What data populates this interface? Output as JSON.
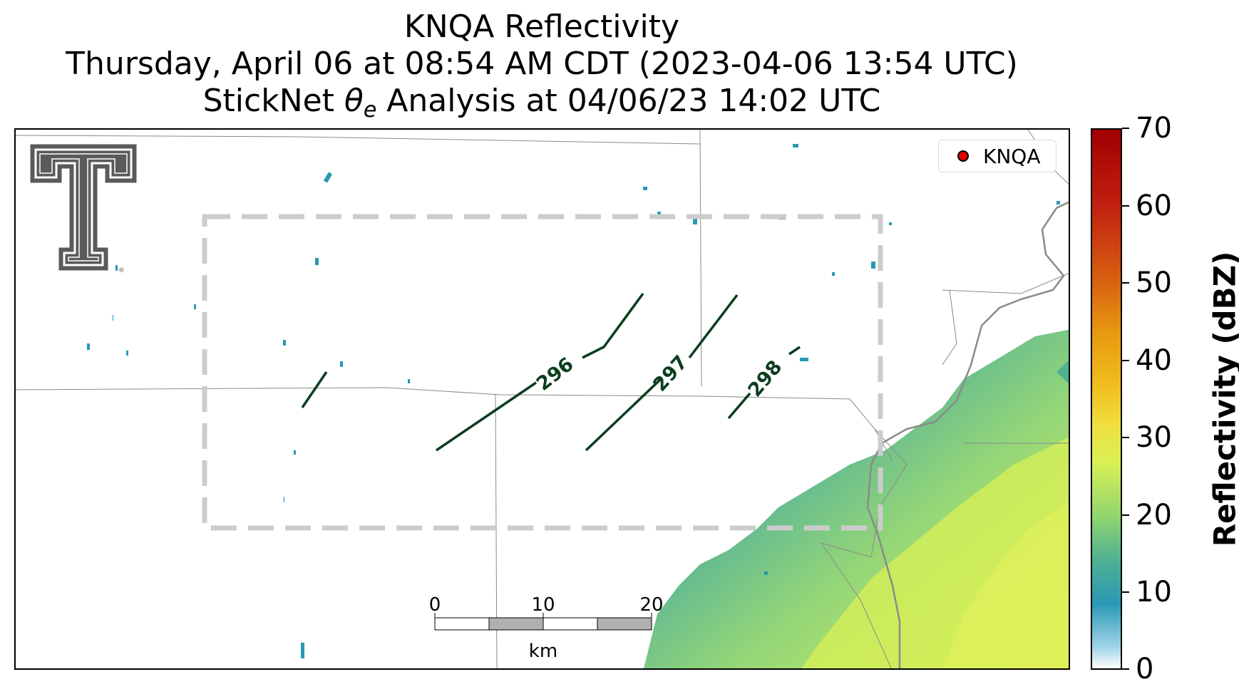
{
  "title": {
    "line1": "KNQA Reflectivity",
    "line2": "Thursday, April 06 at 08:54 AM CDT (2023-04-06 13:54 UTC)",
    "line3_prefix": "StickNet ",
    "line3_symbol": "θ",
    "line3_subscript": "e",
    "line3_suffix": " Analysis at 04/06/23 14:02 UTC"
  },
  "legend": {
    "radar_label": "KNQA",
    "marker_color": "#e00000"
  },
  "contours": {
    "color": "#0b3d1e",
    "labels": [
      "296",
      "297",
      "298"
    ]
  },
  "analysis_box": {
    "style": "dashed",
    "color": "#cccccc"
  },
  "scale_bar": {
    "ticks": [
      "0",
      "10",
      "20"
    ],
    "unit": "km"
  },
  "colorbar": {
    "label": "Reflectivity (dBZ)",
    "ticks": [
      "70",
      "60",
      "50",
      "40",
      "30",
      "20",
      "10",
      "0"
    ],
    "min": 0,
    "max": 70
  },
  "logo": {
    "name": "Texas Tech Double T",
    "color": "#5a5a5a"
  }
}
